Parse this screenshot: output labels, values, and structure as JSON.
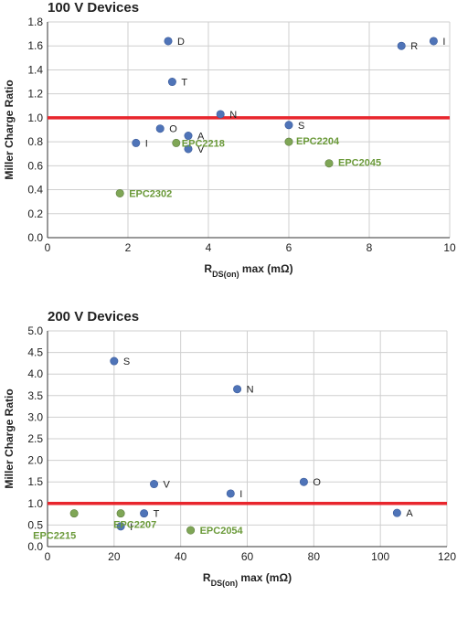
{
  "chart_data": [
    {
      "type": "scatter",
      "title": "100 V Devices",
      "ylabel": "Miller Charge Ratio",
      "xlabel_main": "R",
      "xlabel_sub": "DS(on)",
      "xlabel_rest": " max (mΩ)",
      "xlim": [
        0,
        10
      ],
      "ylim": [
        0,
        1.8
      ],
      "x_ticks": [
        0,
        2,
        4,
        6,
        8,
        10
      ],
      "x_tick_labels": [
        "0",
        "2",
        "4",
        "6",
        "8",
        "10"
      ],
      "y_ticks": [
        0,
        0.2,
        0.4,
        0.6,
        0.8,
        1.0,
        1.2,
        1.4,
        1.6,
        1.8
      ],
      "y_tick_labels": [
        "0.0",
        "0.2",
        "0.4",
        "0.6",
        "0.8",
        "1.0",
        "1.2",
        "1.4",
        "1.6",
        "1.8"
      ],
      "reference_line": 1.0,
      "grid": true,
      "colors": {
        "competitor": "#4f74b8",
        "epc": "#7fa656",
        "epc_text": "#6b9a3a",
        "reference": "#e8262d",
        "grid": "#cfcfcf"
      },
      "points": [
        {
          "label": "D",
          "x": 3.0,
          "y": 1.64,
          "group": "competitor"
        },
        {
          "label": "R",
          "x": 8.8,
          "y": 1.6,
          "group": "competitor"
        },
        {
          "label": "I",
          "x": 9.6,
          "y": 1.64,
          "group": "competitor"
        },
        {
          "label": "T",
          "x": 3.1,
          "y": 1.3,
          "group": "competitor"
        },
        {
          "label": "N",
          "x": 4.3,
          "y": 1.03,
          "group": "competitor"
        },
        {
          "label": "S",
          "x": 6.0,
          "y": 0.94,
          "group": "competitor"
        },
        {
          "label": "O",
          "x": 2.8,
          "y": 0.91,
          "group": "competitor"
        },
        {
          "label": "A",
          "x": 3.5,
          "y": 0.85,
          "group": "competitor"
        },
        {
          "label": "I",
          "x": 2.2,
          "y": 0.79,
          "group": "competitor"
        },
        {
          "label": "V",
          "x": 3.5,
          "y": 0.74,
          "group": "competitor"
        },
        {
          "label": "EPC2218",
          "x": 3.2,
          "y": 0.79,
          "group": "epc"
        },
        {
          "label": "EPC2204",
          "x": 6.0,
          "y": 0.8,
          "group": "epc"
        },
        {
          "label": "EPC2045",
          "x": 7.0,
          "y": 0.62,
          "group": "epc"
        },
        {
          "label": "EPC2302",
          "x": 1.8,
          "y": 0.37,
          "group": "epc"
        }
      ]
    },
    {
      "type": "scatter",
      "title": "200 V Devices",
      "ylabel": "Miller Charge Ratio",
      "xlabel_main": "R",
      "xlabel_sub": "DS(on)",
      "xlabel_rest": " max (mΩ)",
      "xlim": [
        0,
        120
      ],
      "ylim": [
        0,
        5.0
      ],
      "x_ticks": [
        0,
        20,
        40,
        60,
        80,
        100,
        120
      ],
      "x_tick_labels": [
        "0",
        "20",
        "40",
        "60",
        "80",
        "100",
        "120"
      ],
      "y_ticks": [
        0,
        0.5,
        1.0,
        1.5,
        2.0,
        2.5,
        3.0,
        3.5,
        4.0,
        4.5,
        5.0
      ],
      "y_tick_labels": [
        "0.0",
        "0.5",
        "1.0",
        "1.5",
        "2.0",
        "2.5",
        "3.0",
        "3.5",
        "4.0",
        "4.5",
        "5.0"
      ],
      "reference_line": 1.0,
      "grid": true,
      "colors": {
        "competitor": "#4f74b8",
        "epc": "#7fa656",
        "epc_text": "#6b9a3a",
        "reference": "#e8262d",
        "grid": "#cfcfcf"
      },
      "points": [
        {
          "label": "S",
          "x": 20,
          "y": 4.3,
          "group": "competitor"
        },
        {
          "label": "N",
          "x": 57,
          "y": 3.65,
          "group": "competitor"
        },
        {
          "label": "V",
          "x": 32,
          "y": 1.45,
          "group": "competitor"
        },
        {
          "label": "O",
          "x": 77,
          "y": 1.5,
          "group": "competitor"
        },
        {
          "label": "I",
          "x": 55,
          "y": 1.23,
          "group": "competitor"
        },
        {
          "label": "T",
          "x": 29,
          "y": 0.77,
          "group": "competitor"
        },
        {
          "label": "A",
          "x": 105,
          "y": 0.78,
          "group": "competitor"
        },
        {
          "label": "I",
          "x": 22,
          "y": 0.47,
          "group": "competitor"
        },
        {
          "label": "EPC2207",
          "x": 22,
          "y": 0.77,
          "group": "epc"
        },
        {
          "label": "EPC2215",
          "x": 8,
          "y": 0.77,
          "group": "epc"
        },
        {
          "label": "EPC2054",
          "x": 43,
          "y": 0.38,
          "group": "epc"
        }
      ]
    }
  ]
}
